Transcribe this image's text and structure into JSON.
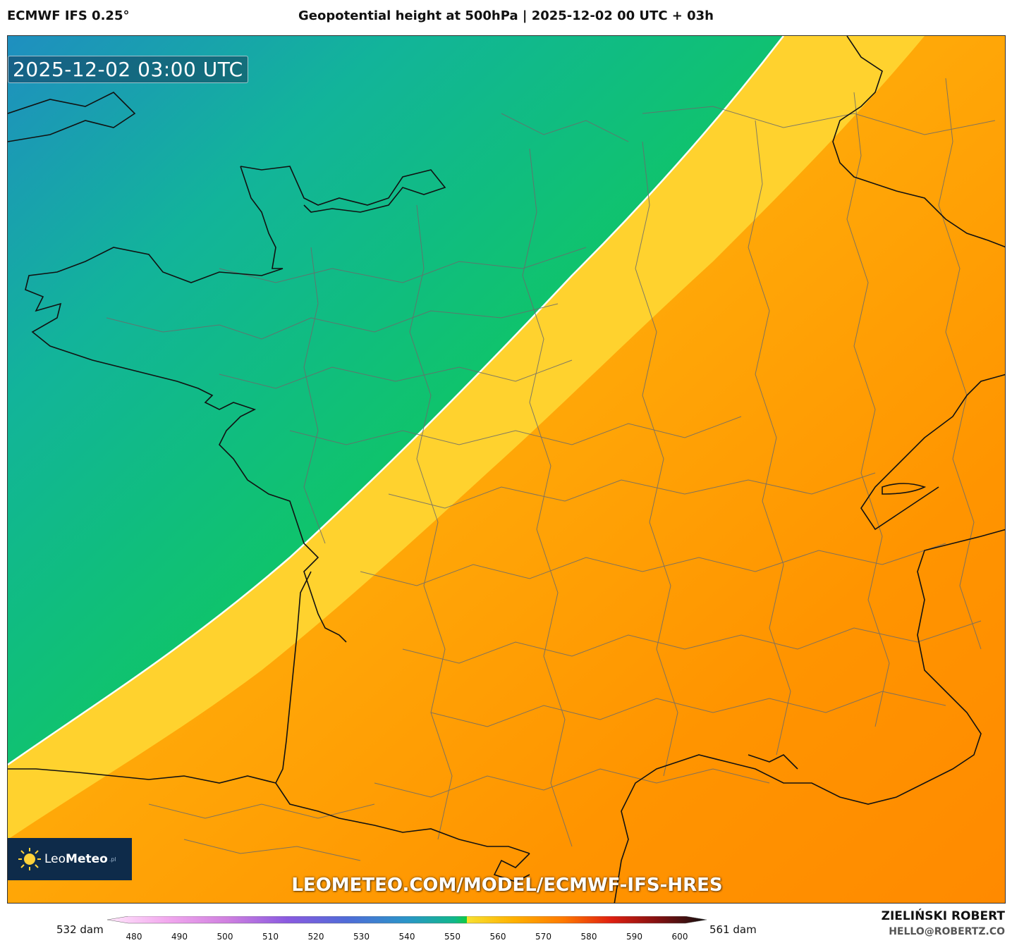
{
  "header": {
    "model": "ECMWF IFS 0.25°",
    "title": "Geopotential height at 500hPa | 2025-12-02 00 UTC + 03h"
  },
  "map": {
    "valid_time": "2025-12-02 03:00 UTC",
    "watermark": "LEOMETEO.COM/MODEL/ECMWF-IFS-HRES",
    "region": "western France"
  },
  "logo": {
    "text_light": "Leo",
    "text_bold": "Meteo",
    "suffix": ".pl"
  },
  "scale": {
    "min_label": "532 dam",
    "max_label": "561 dam",
    "ticks": [
      "480",
      "490",
      "500",
      "510",
      "520",
      "530",
      "540",
      "550",
      "560",
      "570",
      "580",
      "590",
      "600"
    ],
    "colors": {
      "c480": "#fbd0f6",
      "c500": "#d080e0",
      "c520": "#4f6cd8",
      "c540": "#10b88a",
      "c550": "#10cc40",
      "c552": "#f7e030",
      "c560": "#ffb000",
      "c570": "#ff7a00",
      "c580": "#e02010",
      "c590": "#801010",
      "c600": "#101010"
    }
  },
  "credits": {
    "name": "ZIELIŃSKI ROBERT",
    "email": "HELLO@ROBERTZ.CO"
  }
}
